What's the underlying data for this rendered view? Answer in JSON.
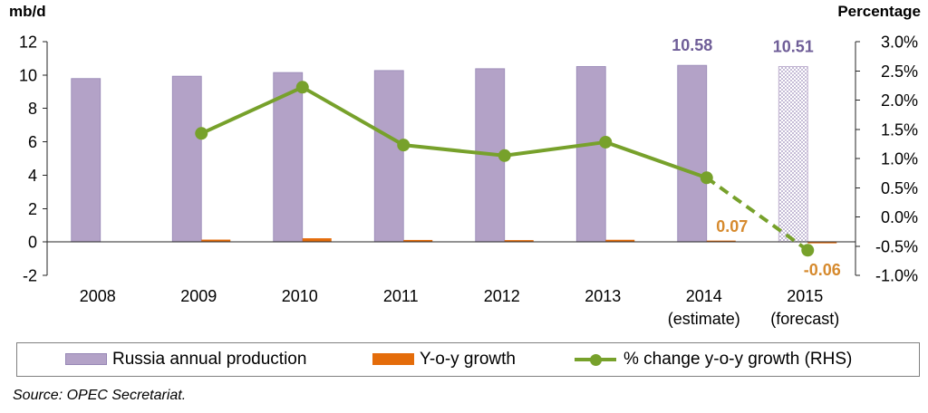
{
  "source": "Source: OPEC Secretariat.",
  "chart_data": {
    "type": "bar",
    "categories": [
      "2008",
      "2009",
      "2010",
      "2011",
      "2012",
      "2013",
      "2014",
      "2015"
    ],
    "category_sublabels": [
      "",
      "",
      "",
      "",
      "",
      "",
      "(estimate)",
      "(forecast)"
    ],
    "y_left": {
      "label": "mb/d",
      "range": [
        -2,
        12
      ],
      "ticks": [
        12,
        10,
        8,
        6,
        4,
        2,
        0,
        -2
      ],
      "tick_labels": [
        "12",
        "10",
        "8",
        "6",
        "4",
        "2",
        "0",
        "-2"
      ]
    },
    "y_right": {
      "label": "Percentage",
      "range": [
        -1.0,
        3.0
      ],
      "ticks": [
        3.0,
        2.5,
        2.0,
        1.5,
        1.0,
        0.5,
        0.0,
        -0.5,
        -1.0
      ],
      "tick_labels": [
        "3.0%",
        "2.5%",
        "2.0%",
        "1.5%",
        "1.0%",
        "0.5%",
        "0.0%",
        "-0.5%",
        "-1.0%"
      ]
    },
    "series": [
      {
        "name": "Russia annual production",
        "type": "bar",
        "axis": "left",
        "values": [
          9.79,
          9.93,
          10.15,
          10.27,
          10.38,
          10.51,
          10.58,
          10.51
        ],
        "data_labels": [
          null,
          null,
          null,
          null,
          null,
          null,
          "10.58",
          "10.51"
        ],
        "forecast_index": 7,
        "color": "#b3a2c7",
        "edge_color": "#9686b5",
        "label_color": "#6f5e98"
      },
      {
        "name": "Y-o-y growth",
        "type": "bar",
        "axis": "left",
        "values": [
          null,
          0.14,
          0.22,
          0.12,
          0.11,
          0.13,
          0.07,
          -0.06
        ],
        "data_labels": [
          null,
          null,
          null,
          null,
          null,
          null,
          "0.07",
          "-0.06"
        ],
        "color": "#e46c0a",
        "label_color": "#d68a2e"
      },
      {
        "name": "% change y-o-y growth (RHS)",
        "type": "line",
        "axis": "right",
        "values": [
          null,
          1.43,
          2.22,
          1.23,
          1.05,
          1.28,
          0.67,
          -0.57
        ],
        "dashed_from_index": 6,
        "color": "#77a12b"
      }
    ],
    "grid": false,
    "legend": "bottom"
  }
}
